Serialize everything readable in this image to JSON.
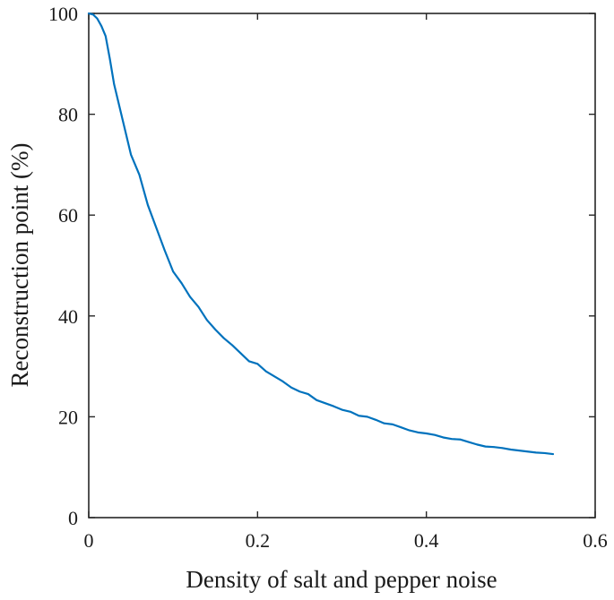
{
  "chart_data": {
    "type": "line",
    "title": "",
    "xlabel": "Density of salt and pepper noise",
    "ylabel": "Reconstruction point (%)",
    "xlim": [
      0,
      0.6
    ],
    "ylim": [
      0,
      100
    ],
    "xticks": [
      0,
      0.2,
      0.4,
      0.6
    ],
    "yticks": [
      0,
      20,
      40,
      60,
      80,
      100
    ],
    "xtick_labels": [
      "0",
      "0.2",
      "0.4",
      "0.6"
    ],
    "ytick_labels": [
      "0",
      "20",
      "40",
      "60",
      "80",
      "100"
    ],
    "grid": false,
    "legend": "none",
    "series": [
      {
        "color": "#0072BD",
        "x": [
          0,
          0.005,
          0.01,
          0.015,
          0.02,
          0.025,
          0.03,
          0.04,
          0.05,
          0.06,
          0.07,
          0.08,
          0.09,
          0.1,
          0.11,
          0.12,
          0.13,
          0.14,
          0.15,
          0.16,
          0.17,
          0.18,
          0.19,
          0.2,
          0.21,
          0.22,
          0.23,
          0.24,
          0.25,
          0.26,
          0.27,
          0.28,
          0.29,
          0.3,
          0.31,
          0.32,
          0.33,
          0.34,
          0.35,
          0.36,
          0.37,
          0.38,
          0.39,
          0.4,
          0.41,
          0.42,
          0.43,
          0.44,
          0.45,
          0.46,
          0.47,
          0.48,
          0.49,
          0.5,
          0.51,
          0.52,
          0.53,
          0.54,
          0.55
        ],
        "y": [
          100,
          99.8,
          99.0,
          97.5,
          95.5,
          91.0,
          86.0,
          79.0,
          72.0,
          68.0,
          62.0,
          57.5,
          53.0,
          48.8,
          46.5,
          43.8,
          41.8,
          39.2,
          37.3,
          35.6,
          34.2,
          32.6,
          31.0,
          30.5,
          29.0,
          28.0,
          27.0,
          25.8,
          25.0,
          24.5,
          23.3,
          22.7,
          22.1,
          21.4,
          21.0,
          20.2,
          20.0,
          19.4,
          18.7,
          18.5,
          17.9,
          17.3,
          16.9,
          16.7,
          16.4,
          15.9,
          15.6,
          15.5,
          15.0,
          14.5,
          14.1,
          14.0,
          13.8,
          13.5,
          13.3,
          13.1,
          12.9,
          12.8,
          12.6
        ]
      }
    ]
  }
}
